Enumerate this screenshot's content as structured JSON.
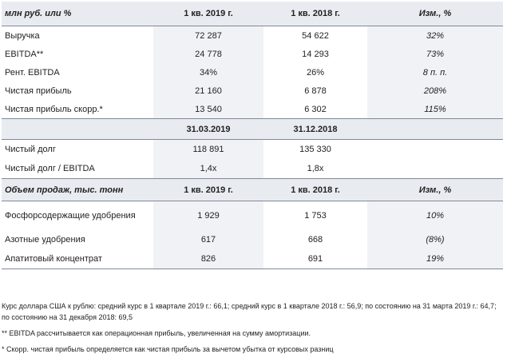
{
  "table": {
    "header": [
      "млн руб. или %",
      "1 кв. 2019 г.",
      "1 кв. 2018 г.",
      "Изм., %"
    ],
    "rows_fin": [
      {
        "label": "Выручка",
        "v1": "72 287",
        "v2": "54 622",
        "chg": "32%"
      },
      {
        "label": "EBITDA**",
        "v1": "24 778",
        "v2": "14 293",
        "chg": "73%"
      },
      {
        "label": "Рент. EBITDA",
        "v1": "34%",
        "v2": "26%",
        "chg": "8 п. п."
      },
      {
        "label": "Чистая прибыль",
        "v1": "21 160",
        "v2": "6 878",
        "chg": "208%"
      },
      {
        "label": "Чистая прибыль скорр.*",
        "v1": "13 540",
        "v2": "6 302",
        "chg": "115%"
      }
    ],
    "date_header": [
      "",
      "31.03.2019",
      "31.12.2018",
      ""
    ],
    "rows_debt": [
      {
        "label": "Чистый долг",
        "v1": "118 891",
        "v2": "135 330",
        "chg": ""
      },
      {
        "label": "Чистый долг / EBITDA",
        "v1": "1,4x",
        "v2": "1,8x",
        "chg": ""
      }
    ],
    "sales_header": [
      "Объем продаж, тыс. тонн",
      "1 кв. 2019 г.",
      "1 кв. 2018 г.",
      "Изм., %"
    ],
    "rows_sales": [
      {
        "label": "Фосфорсодержащие удобрения",
        "v1": "1 929",
        "v2": "1 753",
        "chg": "10%"
      },
      {
        "label": "Азотные удобрения",
        "v1": "617",
        "v2": "668",
        "chg": "(8%)"
      },
      {
        "label": "Апатитовый концентрат",
        "v1": "826",
        "v2": "691",
        "chg": "19%"
      }
    ]
  },
  "footnotes": {
    "fx": "Курс доллара США к рублю: средний курс в 1 квартале 2019 г.: 66,1; средний курс в 1 квартале 2018 г.: 56,9; по состоянию на 31 марта 2019 г.: 64,7; по состоянию на 31 декабря 2018: 69,5",
    "ebitda": "** EBITDA рассчитывается как операционная прибыль, увеличенная на сумму амортизации.",
    "adj": "* Скорр. чистая прибыль определяется как чистая прибыль за вычетом убытка от курсовых разниц"
  }
}
